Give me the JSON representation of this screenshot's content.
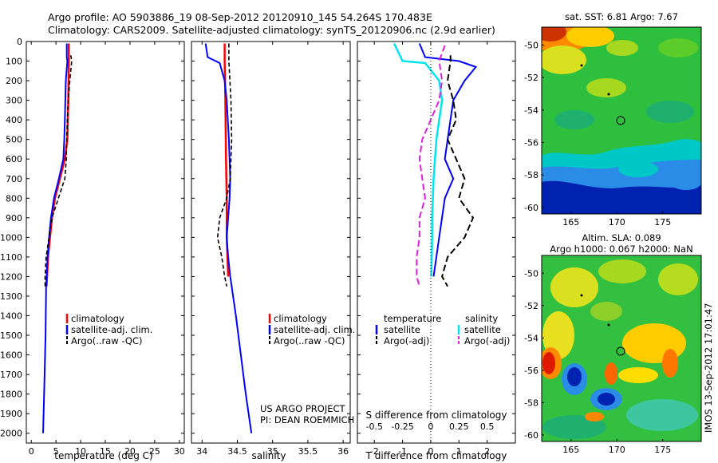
{
  "header": {
    "line1": "Argo profile: AO 5903886_19 08-Sep-2012 20120910_145 54.264S 170.483E",
    "line2": "Climatology: CARS2009. Satellite-adjusted climatology: synTS_20120906.nc (2.9d earlier)"
  },
  "credits": {
    "project": "US ARGO PROJECT",
    "pi": "PI: DEAN ROEMMICH",
    "imos": "IMOS 13-Sep-2012 17:01:47"
  },
  "colors": {
    "climatology": "#ff0000",
    "satellite": "#0000ff",
    "argo": "#000000",
    "sal_satellite": "#00e5ee",
    "sal_argo": "#e020e0",
    "map_bg": "#22bb44"
  },
  "chart_data": [
    {
      "type": "line",
      "panel": "temperature",
      "xlabel": "temperature (deg C)",
      "ylabel": "",
      "xlim": [
        -1,
        31
      ],
      "ylim": [
        2050,
        0
      ],
      "xticks": [
        "0",
        "5",
        "10",
        "15",
        "20",
        "25",
        "30"
      ],
      "yticks": [
        "0",
        "100",
        "200",
        "300",
        "400",
        "500",
        "600",
        "700",
        "800",
        "900",
        "1000",
        "1100",
        "1200",
        "1300",
        "1400",
        "1500",
        "1600",
        "1700",
        "1800",
        "1900",
        "2000"
      ],
      "legend": [
        "climatology",
        "satellite-adj. clim.",
        "Argo(..raw -QC)"
      ],
      "series": [
        {
          "name": "climatology",
          "points": [
            [
              7.6,
              10
            ],
            [
              7.6,
              100
            ],
            [
              7.5,
              300
            ],
            [
              7.3,
              500
            ],
            [
              6.8,
              600
            ],
            [
              5.8,
              700
            ],
            [
              4.8,
              800
            ],
            [
              4.2,
              900
            ],
            [
              3.8,
              1000
            ],
            [
              3.4,
              1100
            ],
            [
              3.1,
              1250
            ]
          ]
        },
        {
          "name": "satellite-adj. clim.",
          "points": [
            [
              7.2,
              10
            ],
            [
              7.2,
              80
            ],
            [
              7.3,
              100
            ],
            [
              7.0,
              200
            ],
            [
              6.9,
              300
            ],
            [
              6.8,
              400
            ],
            [
              6.7,
              500
            ],
            [
              6.5,
              600
            ],
            [
              5.6,
              700
            ],
            [
              4.6,
              800
            ],
            [
              4.0,
              900
            ],
            [
              3.6,
              1000
            ],
            [
              3.3,
              1100
            ],
            [
              3.0,
              1250
            ],
            [
              2.9,
              1500
            ],
            [
              2.6,
              1800
            ],
            [
              2.4,
              2000
            ]
          ]
        },
        {
          "name": "Argo(..raw -QC)",
          "points": [
            [
              8.0,
              70
            ],
            [
              8.2,
              100
            ],
            [
              7.8,
              200
            ],
            [
              7.5,
              300
            ],
            [
              7.3,
              400
            ],
            [
              7.2,
              500
            ],
            [
              7.1,
              600
            ],
            [
              6.8,
              700
            ],
            [
              5.5,
              800
            ],
            [
              4.2,
              900
            ],
            [
              3.6,
              1000
            ],
            [
              3.0,
              1100
            ],
            [
              2.8,
              1200
            ],
            [
              2.8,
              1250
            ]
          ]
        }
      ]
    },
    {
      "type": "line",
      "panel": "salinity",
      "xlabel": "salinity",
      "xlim": [
        33.85,
        36.1
      ],
      "ylim": [
        2050,
        0
      ],
      "xticks": [
        "34",
        "34.5",
        "35",
        "35.5",
        "36"
      ],
      "legend": [
        "climatology",
        "satellite-adj. clim.",
        "Argo(..raw -QC)"
      ],
      "series": [
        {
          "name": "climatology",
          "points": [
            [
              34.32,
              10
            ],
            [
              34.32,
              100
            ],
            [
              34.33,
              300
            ],
            [
              34.34,
              600
            ],
            [
              34.35,
              800
            ],
            [
              34.35,
              1000
            ],
            [
              34.37,
              1200
            ]
          ]
        },
        {
          "name": "satellite-adj. clim.",
          "points": [
            [
              34.05,
              10
            ],
            [
              34.08,
              80
            ],
            [
              34.25,
              110
            ],
            [
              34.32,
              200
            ],
            [
              34.35,
              300
            ],
            [
              34.38,
              500
            ],
            [
              34.4,
              700
            ],
            [
              34.39,
              800
            ],
            [
              34.37,
              900
            ],
            [
              34.35,
              1000
            ],
            [
              34.37,
              1100
            ],
            [
              34.4,
              1200
            ],
            [
              34.48,
              1400
            ],
            [
              34.55,
              1600
            ],
            [
              34.62,
              1800
            ],
            [
              34.68,
              1950
            ],
            [
              34.7,
              2000
            ]
          ]
        },
        {
          "name": "Argo(..raw -QC)",
          "points": [
            [
              34.38,
              10
            ],
            [
              34.38,
              100
            ],
            [
              34.41,
              300
            ],
            [
              34.42,
              500
            ],
            [
              34.4,
              700
            ],
            [
              34.35,
              800
            ],
            [
              34.25,
              900
            ],
            [
              34.22,
              1000
            ],
            [
              34.28,
              1100
            ],
            [
              34.32,
              1200
            ],
            [
              34.35,
              1250
            ]
          ]
        }
      ]
    },
    {
      "type": "line",
      "panel": "difference",
      "xlabel": "T difference from climatology",
      "xlabel_top": "S difference from climatology",
      "xlim": [
        -2.6,
        3.0
      ],
      "ylim": [
        2050,
        0
      ],
      "xticks_T": [
        "-2",
        "-1",
        "0",
        "1",
        "2"
      ],
      "xticks_S": [
        "-0.5",
        "-0.25",
        "0",
        "0.25",
        "0.5"
      ],
      "legend_temperature_title": "temperature",
      "legend_salinity_title": "salinity",
      "legend": [
        "satellite",
        "Argo(-adj)",
        "satellite",
        "Argo(-adj)"
      ],
      "series": [
        {
          "name": "temperature satellite",
          "points": [
            [
              -0.4,
              10
            ],
            [
              -0.2,
              80
            ],
            [
              1.0,
              100
            ],
            [
              1.6,
              130
            ],
            [
              1.2,
              200
            ],
            [
              0.8,
              300
            ],
            [
              0.6,
              500
            ],
            [
              0.5,
              600
            ],
            [
              0.8,
              700
            ],
            [
              0.5,
              800
            ],
            [
              0.3,
              1000
            ],
            [
              0.1,
              1200
            ]
          ]
        },
        {
          "name": "temperature Argo(-adj)",
          "points": [
            [
              0.7,
              70
            ],
            [
              0.7,
              100
            ],
            [
              0.6,
              200
            ],
            [
              0.8,
              300
            ],
            [
              0.9,
              400
            ],
            [
              0.6,
              500
            ],
            [
              0.9,
              600
            ],
            [
              1.2,
              700
            ],
            [
              1.0,
              800
            ],
            [
              1.5,
              900
            ],
            [
              1.2,
              1000
            ],
            [
              0.6,
              1100
            ],
            [
              0.4,
              1200
            ],
            [
              0.6,
              1250
            ]
          ]
        },
        {
          "name": "salinity satellite",
          "points": [
            [
              -1.3,
              10
            ],
            [
              -1.0,
              100
            ],
            [
              -0.2,
              110
            ],
            [
              0.3,
              200
            ],
            [
              0.4,
              300
            ],
            [
              0.2,
              500
            ],
            [
              0.1,
              700
            ],
            [
              0.05,
              900
            ],
            [
              0.05,
              1000
            ],
            [
              0.02,
              1200
            ]
          ]
        },
        {
          "name": "salinity Argo(-adj)",
          "points": [
            [
              0.5,
              20
            ],
            [
              0.3,
              100
            ],
            [
              0.4,
              200
            ],
            [
              0.3,
              300
            ],
            [
              0.0,
              400
            ],
            [
              -0.3,
              500
            ],
            [
              -0.4,
              600
            ],
            [
              -0.3,
              700
            ],
            [
              -0.2,
              800
            ],
            [
              -0.4,
              900
            ],
            [
              -0.4,
              1000
            ],
            [
              -0.5,
              1100
            ],
            [
              -0.5,
              1200
            ],
            [
              -0.4,
              1250
            ]
          ]
        }
      ]
    }
  ],
  "maps": [
    {
      "title": "sat. SST: 6.81  Argo: 7.67",
      "xticks": [
        "165",
        "170",
        "175"
      ],
      "yticks": [
        "-50",
        "-52",
        "-54",
        "-56",
        "-58",
        "-60"
      ]
    },
    {
      "title1": "Altim. SLA: 0.089",
      "title2": "Argo h1000: 0.067 h2000: NaN",
      "xticks": [
        "165",
        "170",
        "175"
      ],
      "yticks": [
        "-50",
        "-52",
        "-54",
        "-56",
        "-58",
        "-60"
      ]
    }
  ]
}
